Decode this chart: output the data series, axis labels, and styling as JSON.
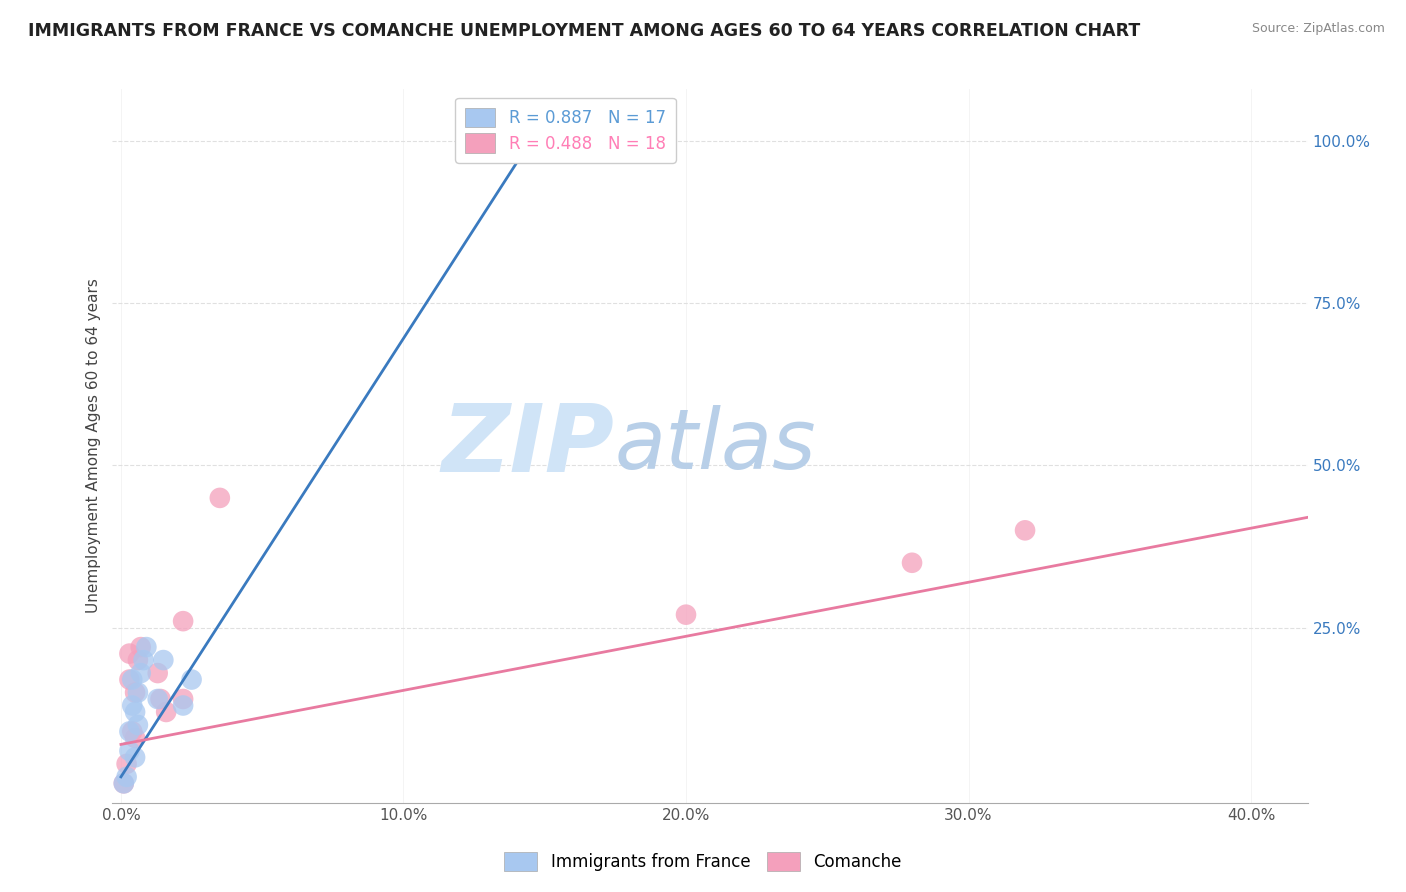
{
  "title": "IMMIGRANTS FROM FRANCE VS COMANCHE UNEMPLOYMENT AMONG AGES 60 TO 64 YEARS CORRELATION CHART",
  "source": "Source: ZipAtlas.com",
  "ylabel": "Unemployment Among Ages 60 to 64 years",
  "xlim": [
    -0.003,
    0.42
  ],
  "ylim": [
    -0.02,
    1.08
  ],
  "xtick_labels": [
    "0.0%",
    "10.0%",
    "20.0%",
    "30.0%",
    "40.0%"
  ],
  "xtick_values": [
    0.0,
    0.1,
    0.2,
    0.3,
    0.4
  ],
  "ytick_labels": [
    "25.0%",
    "50.0%",
    "75.0%",
    "100.0%"
  ],
  "ytick_values": [
    0.25,
    0.5,
    0.75,
    1.0
  ],
  "legend_entries": [
    {
      "label_r": "R = 0.887",
      "label_n": "N = 17",
      "color": "#5b9bd5"
    },
    {
      "label_r": "R = 0.488",
      "label_n": "N = 18",
      "color": "#ff7eb6"
    }
  ],
  "blue_scatter_x": [
    0.001,
    0.002,
    0.003,
    0.003,
    0.004,
    0.004,
    0.005,
    0.005,
    0.006,
    0.006,
    0.007,
    0.008,
    0.009,
    0.013,
    0.015,
    0.022,
    0.025
  ],
  "blue_scatter_y": [
    0.01,
    0.02,
    0.06,
    0.09,
    0.13,
    0.17,
    0.05,
    0.12,
    0.1,
    0.15,
    0.18,
    0.2,
    0.22,
    0.14,
    0.2,
    0.13,
    0.17
  ],
  "pink_scatter_x": [
    0.001,
    0.002,
    0.003,
    0.003,
    0.004,
    0.005,
    0.005,
    0.006,
    0.007,
    0.013,
    0.014,
    0.016,
    0.022,
    0.022,
    0.035,
    0.2,
    0.28,
    0.32
  ],
  "pink_scatter_y": [
    0.01,
    0.04,
    0.17,
    0.21,
    0.09,
    0.08,
    0.15,
    0.2,
    0.22,
    0.18,
    0.14,
    0.12,
    0.26,
    0.14,
    0.45,
    0.27,
    0.35,
    0.4
  ],
  "blue_line_x": [
    0.0,
    0.145
  ],
  "blue_line_y": [
    0.02,
    1.0
  ],
  "pink_line_x": [
    0.0,
    0.42
  ],
  "pink_line_y": [
    0.07,
    0.42
  ],
  "scatter_color_blue": "#a8c8f0",
  "scatter_color_pink": "#f4a0bc",
  "line_color_blue": "#3a7abf",
  "line_color_pink": "#e87aa0",
  "grid_color": "#e0e0e0",
  "watermark_zip": "ZIP",
  "watermark_atlas": "atlas",
  "watermark_color_zip": "#d0e4f7",
  "watermark_color_atlas": "#b8cfe8",
  "background_color": "#ffffff"
}
